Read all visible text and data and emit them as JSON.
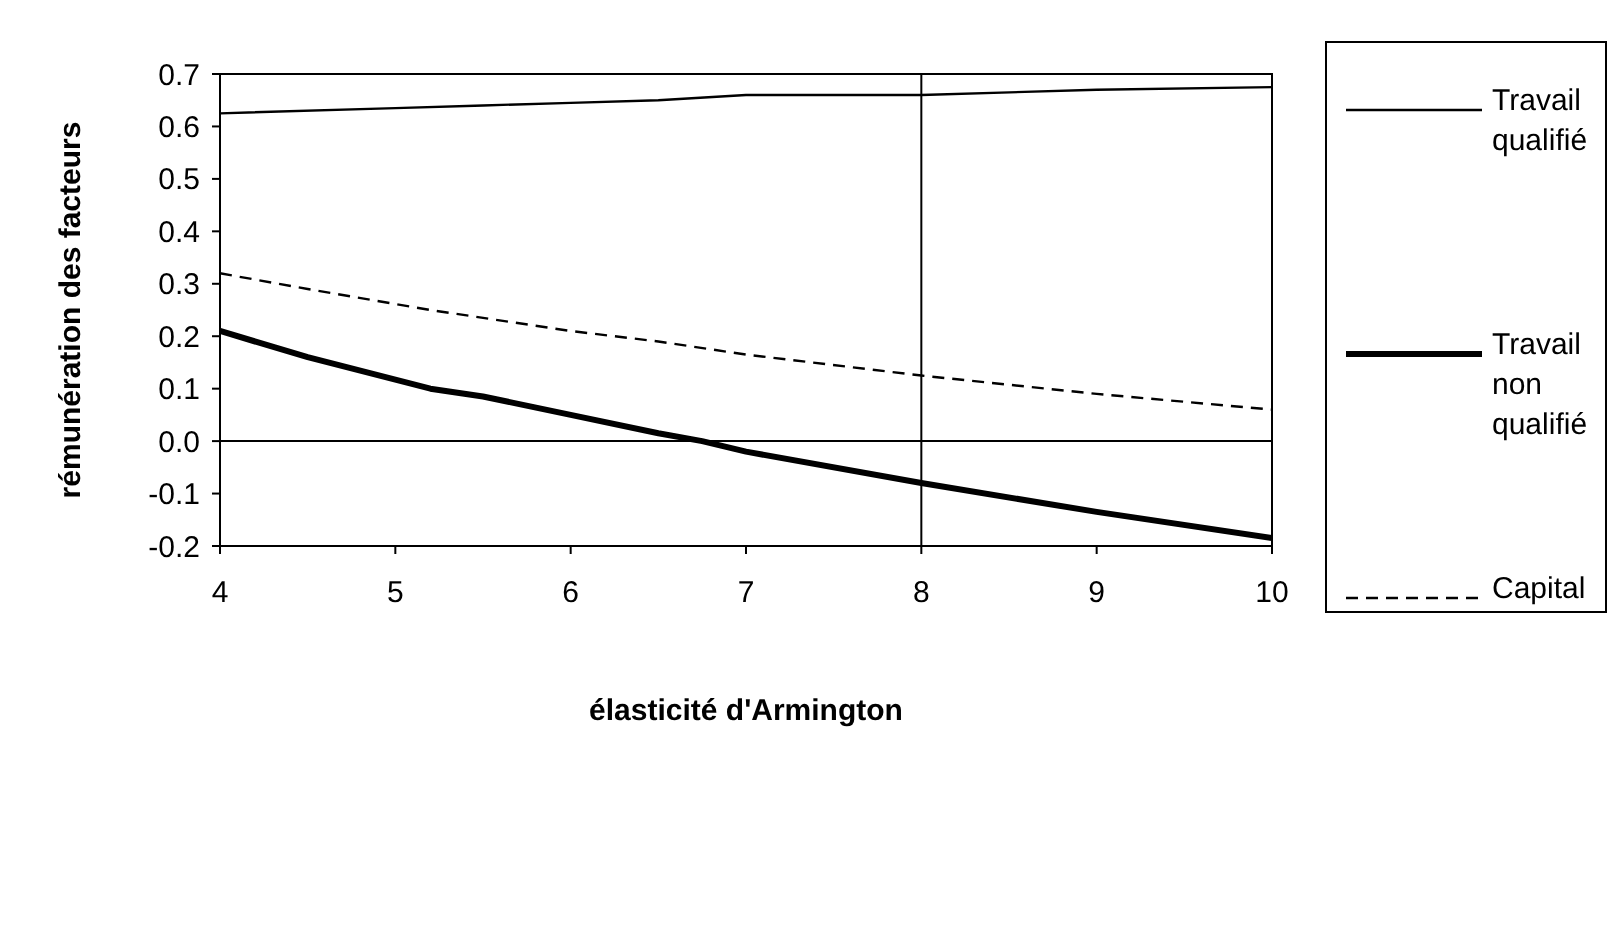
{
  "chart_data": {
    "type": "line",
    "xlabel": "élasticité d'Armington",
    "ylabel": "rémunération des facteurs",
    "xlim": [
      4,
      10
    ],
    "xticks": [
      4,
      5,
      6,
      7,
      8,
      9,
      10
    ],
    "ylim": [
      -0.2,
      0.7
    ],
    "yticks": [
      {
        "value": -0.2,
        "label": "-0.2"
      },
      {
        "value": -0.1,
        "label": "-0.1"
      },
      {
        "value": 0,
        "label": "0.0"
      },
      {
        "value": 0.1,
        "label": "0.1"
      },
      {
        "value": 0.2,
        "label": "0.2"
      },
      {
        "value": 0.3,
        "label": "0.3"
      },
      {
        "value": 0.4,
        "label": "0.4"
      },
      {
        "value": 0.5,
        "label": "0.5"
      },
      {
        "value": 0.6,
        "label": "0.6"
      },
      {
        "value": 0.7,
        "label": "0.7"
      }
    ],
    "grid": false,
    "legend": "right",
    "marker": "none",
    "ref_lines": [
      {
        "axis": "y",
        "value": 0,
        "color": "#000000"
      },
      {
        "axis": "x",
        "value": 8,
        "color": "#000000"
      }
    ],
    "series": [
      {
        "name": "Travail qualifié",
        "color": "#000000",
        "line_style": "solid",
        "x": [
          4,
          5,
          5.5,
          6,
          6.5,
          7,
          8,
          9,
          10
        ],
        "values": [
          0.625,
          0.635,
          0.64,
          0.645,
          0.65,
          0.66,
          0.66,
          0.67,
          0.675
        ]
      },
      {
        "name": "Travail non qualifié",
        "color": "#000000",
        "line_style": "solid",
        "x": [
          4,
          4.5,
          5.2,
          5.5,
          6,
          6.5,
          6.75,
          7,
          8,
          9,
          10
        ],
        "values": [
          0.21,
          0.16,
          0.1,
          0.085,
          0.05,
          0.015,
          0,
          -0.02,
          -0.08,
          -0.135,
          -0.185
        ]
      },
      {
        "name": "Capital",
        "color": "#000000",
        "line_style": "dashed",
        "x": [
          4,
          4.5,
          5.2,
          6,
          6.5,
          7,
          8,
          9,
          10
        ],
        "values": [
          0.32,
          0.29,
          0.25,
          0.21,
          0.19,
          0.165,
          0.125,
          0.09,
          0.06
        ]
      }
    ]
  }
}
